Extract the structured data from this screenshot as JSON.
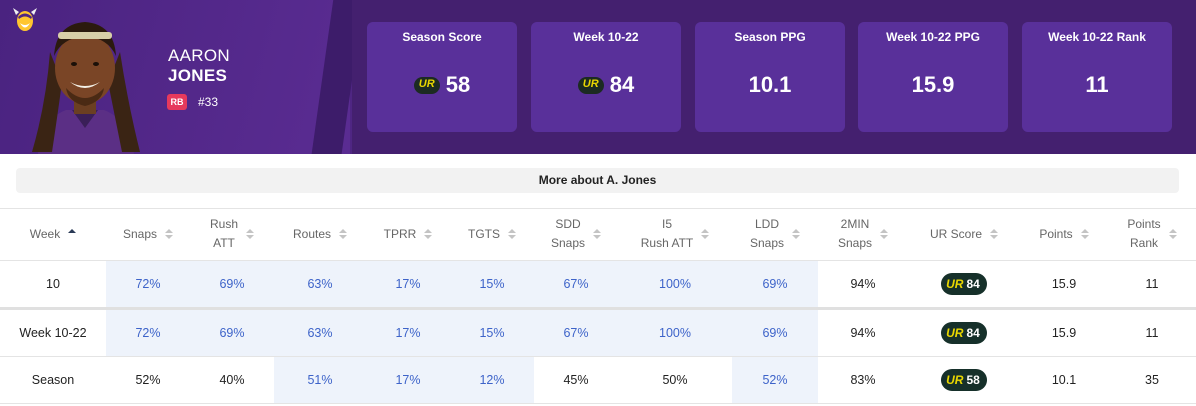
{
  "player": {
    "first_name": "AARON",
    "last_name": "JONES",
    "position": "RB",
    "jersey": "#33"
  },
  "colors": {
    "team_primary": "#4f2683",
    "card_bg": "#59309a",
    "badge_red": "#e6395c",
    "ur_green": "#16302a",
    "ur_yellow": "#e9d700",
    "link_blue": "#3d63c9"
  },
  "stats": [
    {
      "label": "Season Score",
      "value": "58",
      "ur_logo": true
    },
    {
      "label": "Week 10-22",
      "value": "84",
      "ur_logo": true
    },
    {
      "label": "Season PPG",
      "value": "10.1",
      "ur_logo": false
    },
    {
      "label": "Week 10-22 PPG",
      "value": "15.9",
      "ur_logo": false
    },
    {
      "label": "Week 10-22 Rank",
      "value": "11",
      "ur_logo": false
    }
  ],
  "ur_mark": "UR",
  "more_about": "More about A. Jones",
  "columns": [
    {
      "label": "Week",
      "sub": ""
    },
    {
      "label": "Snaps",
      "sub": ""
    },
    {
      "label": "Rush",
      "sub": "ATT"
    },
    {
      "label": "Routes",
      "sub": ""
    },
    {
      "label": "TPRR",
      "sub": ""
    },
    {
      "label": "TGTS",
      "sub": ""
    },
    {
      "label": "SDD",
      "sub": "Snaps"
    },
    {
      "label": "I5",
      "sub": "Rush ATT"
    },
    {
      "label": "LDD",
      "sub": "Snaps"
    },
    {
      "label": "2MIN",
      "sub": "Snaps"
    },
    {
      "label": "UR Score",
      "sub": ""
    },
    {
      "label": "Points",
      "sub": ""
    },
    {
      "label": "Points",
      "sub": "Rank"
    }
  ],
  "rows": [
    {
      "week": "10",
      "snaps": "72%",
      "rush_att": "69%",
      "routes": "63%",
      "tprr": "17%",
      "tgts": "15%",
      "sdd": "67%",
      "i5": "100%",
      "ldd": "69%",
      "twomin": "94%",
      "ur_score": "84",
      "points": "15.9",
      "rank": "11"
    },
    {
      "week": "Week 10-22",
      "snaps": "72%",
      "rush_att": "69%",
      "routes": "63%",
      "tprr": "17%",
      "tgts": "15%",
      "sdd": "67%",
      "i5": "100%",
      "ldd": "69%",
      "twomin": "94%",
      "ur_score": "84",
      "points": "15.9",
      "rank": "11"
    },
    {
      "week": "Season",
      "snaps": "52%",
      "rush_att": "40%",
      "routes": "51%",
      "tprr": "17%",
      "tgts": "12%",
      "sdd": "45%",
      "i5": "50%",
      "ldd": "52%",
      "twomin": "83%",
      "ur_score": "58",
      "points": "10.1",
      "rank": "35"
    }
  ]
}
